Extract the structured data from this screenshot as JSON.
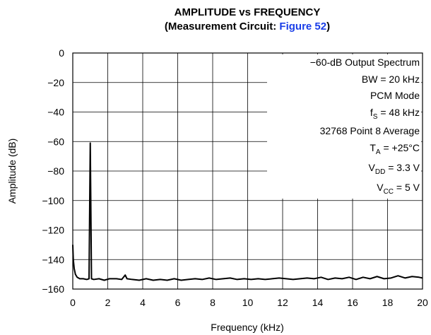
{
  "chart_data": {
    "type": "line",
    "title": "AMPLITUDE vs FREQUENCY",
    "subtitle_parts": [
      "(Measurement Circuit: ",
      "Figure 52",
      ")"
    ],
    "xlabel": "Frequency (kHz)",
    "ylabel": "Amplitude (dB)",
    "xlim": [
      0,
      20
    ],
    "xticks": [
      0,
      2,
      4,
      6,
      8,
      10,
      12,
      14,
      16,
      18,
      20
    ],
    "ylim": [
      -160,
      0
    ],
    "yticks": [
      {
        "value": -160,
        "label": "−160"
      },
      {
        "value": -140,
        "label": "−140"
      },
      {
        "value": -120,
        "label": "−120"
      },
      {
        "value": -100,
        "label": "−100"
      },
      {
        "value": -80,
        "label": "−80"
      },
      {
        "value": -60,
        "label": "−60"
      },
      {
        "value": -40,
        "label": "−40"
      },
      {
        "value": -20,
        "label": "−20"
      },
      0
    ],
    "grid": true,
    "annotations": [
      {
        "main": "−60-dB Output Spectrum"
      },
      {
        "main": "BW = 20 kHz"
      },
      {
        "main": "PCM Mode"
      },
      {
        "main": "f",
        "sub": "S",
        "tail": " = 48 kHz"
      },
      {
        "main": "32768 Point 8 Average"
      },
      {
        "main": "T",
        "sub": "A",
        "tail": " = +25°C"
      },
      {
        "main": "V",
        "sub": "DD",
        "tail": " = 3.3 V"
      },
      {
        "main": "V",
        "sub": "CC",
        "tail": " = 5 V"
      }
    ],
    "series": [
      {
        "color": "#000000",
        "x": [
          0,
          0.03,
          0.08,
          0.15,
          0.25,
          0.4,
          0.6,
          0.8,
          0.93,
          0.97,
          1.0,
          1.03,
          1.07,
          1.2,
          1.5,
          1.8,
          2.1,
          2.5,
          2.8,
          3.0,
          3.1,
          3.4,
          3.8,
          4.2,
          4.6,
          5.0,
          5.4,
          5.8,
          6.2,
          6.6,
          7.0,
          7.4,
          7.8,
          8.2,
          8.6,
          9.0,
          9.4,
          9.8,
          10.2,
          10.6,
          11.0,
          11.4,
          11.8,
          12.2,
          12.6,
          13.0,
          13.4,
          13.8,
          14.2,
          14.6,
          15.0,
          15.4,
          15.8,
          16.2,
          16.6,
          17.0,
          17.4,
          17.8,
          18.2,
          18.6,
          19.0,
          19.4,
          19.8,
          20
        ],
        "values": [
          -130,
          -140,
          -146,
          -150,
          -152,
          -153,
          -153,
          -153.5,
          -153,
          -100,
          -61,
          -100,
          -153,
          -153.5,
          -153,
          -154,
          -153,
          -153,
          -153.5,
          -150.5,
          -153,
          -153.5,
          -154,
          -153,
          -154,
          -153.5,
          -154,
          -153,
          -154,
          -153.5,
          -153,
          -153.5,
          -152.5,
          -153.5,
          -153,
          -152.5,
          -153.5,
          -153,
          -153.5,
          -153,
          -153.5,
          -153,
          -152.5,
          -153,
          -153.5,
          -153,
          -152.5,
          -153,
          -152,
          -153.5,
          -152.5,
          -153,
          -152,
          -153.5,
          -152,
          -153,
          -151.5,
          -153,
          -152.5,
          -151,
          -152.5,
          -151.5,
          -152,
          -152.5
        ]
      }
    ]
  }
}
